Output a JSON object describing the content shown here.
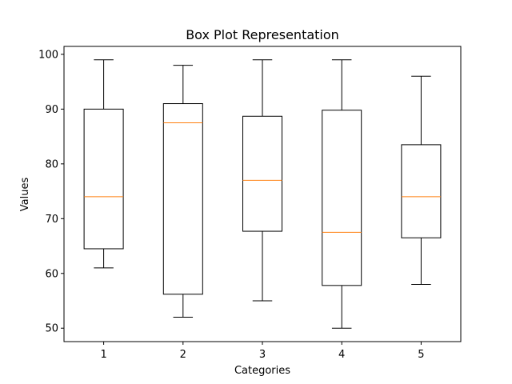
{
  "chart_data": {
    "type": "box",
    "title": "Box Plot Representation",
    "xlabel": "Categories",
    "ylabel": "Values",
    "categories": [
      "1",
      "2",
      "3",
      "4",
      "5"
    ],
    "ylim": [
      47.55,
      101.45
    ],
    "yticks": [
      50,
      60,
      70,
      80,
      90,
      100
    ],
    "grid": false,
    "boxes": [
      {
        "category": "1",
        "whisker_low": 61,
        "q1": 64.5,
        "median": 74,
        "q3": 90,
        "whisker_high": 99
      },
      {
        "category": "2",
        "whisker_low": 52,
        "q1": 56.2,
        "median": 87.5,
        "q3": 91,
        "whisker_high": 98
      },
      {
        "category": "3",
        "whisker_low": 55,
        "q1": 67.7,
        "median": 77,
        "q3": 88.7,
        "whisker_high": 99
      },
      {
        "category": "4",
        "whisker_low": 50,
        "q1": 57.8,
        "median": 67.5,
        "q3": 89.8,
        "whisker_high": 99
      },
      {
        "category": "5",
        "whisker_low": 58,
        "q1": 66.5,
        "median": 74,
        "q3": 83.5,
        "whisker_high": 96
      }
    ],
    "colors": {
      "box": "#000000",
      "median": "#ff7f0e",
      "whisker": "#000000"
    }
  }
}
